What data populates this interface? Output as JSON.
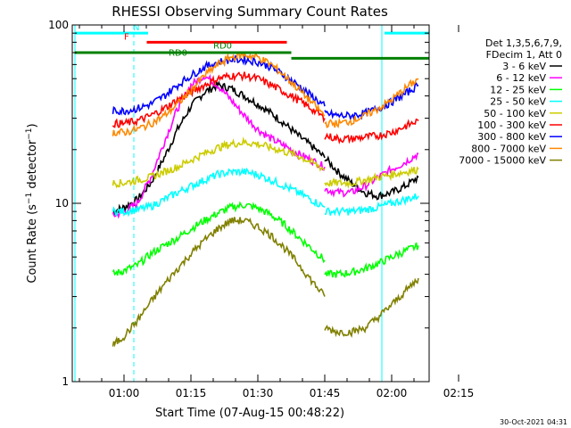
{
  "chart_data": {
    "type": "line",
    "title": "RHESSI Observing Summary Count Rates",
    "xlabel": "Start Time (07-Aug-15 00:48:22)",
    "ylabel": "Count Rate (s⁻¹ detector⁻¹)",
    "ylabel_parts": [
      "Count Rate (s",
      "−1",
      " detector",
      "−1",
      ")"
    ],
    "ylim": [
      1,
      100
    ],
    "yscale": "log",
    "y_ticks": [
      1,
      10,
      100
    ],
    "y_tick_labels": [
      "1",
      "10",
      "100"
    ],
    "xlim_min": [
      48.4,
      128.4
    ],
    "x_ticks_min": [
      60,
      75,
      90,
      105,
      120,
      135
    ],
    "x_tick_labels": [
      "01:00",
      "01:15",
      "01:30",
      "01:45",
      "02:00",
      "02:15"
    ],
    "timestamp": "30-Oct-2021 04:31",
    "legend": {
      "placement": "right",
      "header": [
        "Det 1,3,5,6,7,9,",
        "FDecim 1, Att 0"
      ],
      "entries": [
        {
          "label": "3 - 6 keV",
          "color": "#000000"
        },
        {
          "label": "6 - 12 keV",
          "color": "#ff00ff"
        },
        {
          "label": "12 - 25 keV",
          "color": "#00ff00"
        },
        {
          "label": "25 - 50 keV",
          "color": "#00ffff"
        },
        {
          "label": "50 - 100 keV",
          "color": "#cccc00"
        },
        {
          "label": "100 - 300 keV",
          "color": "#ff0000"
        },
        {
          "label": "300 - 800 keV",
          "color": "#0000ff"
        },
        {
          "label": "800 - 7000 keV",
          "color": "#ff8800"
        },
        {
          "label": "7000 - 15000 keV",
          "color": "#808000"
        }
      ]
    },
    "annotations": [
      {
        "text": "N",
        "color": "#00ffff",
        "x_min": 62,
        "y": 90
      },
      {
        "text": "F",
        "color": "#ff0000",
        "x_min": 60,
        "y": 80
      },
      {
        "text": "RD0",
        "color": "#008000",
        "x_min": 80,
        "y": 71
      },
      {
        "text": "RD0",
        "color": "#008000",
        "x_min": 70,
        "y": 65
      }
    ],
    "flag_bars": [
      {
        "name": "night",
        "color": "#00ffff",
        "y": 90,
        "segments": [
          [
            48.9,
            65.4
          ],
          [
            118.4,
            128.4
          ]
        ]
      },
      {
        "name": "flare",
        "color": "#ff0000",
        "y": 80,
        "segments": [
          [
            65.1,
            96.5
          ]
        ]
      },
      {
        "name": "rd0",
        "color": "#008000",
        "y": 70,
        "segments": [
          [
            48.9,
            97.5
          ]
        ]
      },
      {
        "name": "rd0",
        "color": "#008000",
        "y": 65,
        "segments": [
          [
            97.5,
            128.4
          ]
        ]
      }
    ],
    "day_boundaries": [
      {
        "style": "solid",
        "x_min": 49.0
      },
      {
        "style": "dashed",
        "x_min": 62.2
      },
      {
        "style": "solid",
        "x_min": 117.8
      },
      {
        "style": "dashed",
        "x_min": 131.2
      }
    ],
    "series": [
      {
        "name": "3 - 6 keV",
        "color": "#000000",
        "segments": [
          {
            "x": [
              57.5,
              60,
              63,
              66,
              69,
              72,
              75,
              78,
              81,
              84,
              87,
              90,
              93,
              96,
              99,
              102,
              105
            ],
            "y": [
              9,
              9.5,
              10.5,
              13,
              18,
              26,
              35,
              42,
              46,
              44,
              40,
              36,
              32,
              28,
              24,
              21,
              18
            ]
          },
          {
            "x": [
              105,
              108,
              111,
              114,
              117,
              120,
              123,
              126
            ],
            "y": [
              18,
              15,
              13,
              11.5,
              11,
              11.5,
              12.5,
              14
            ]
          }
        ]
      },
      {
        "name": "6 - 12 keV",
        "color": "#ff00ff",
        "segments": [
          {
            "x": [
              57.5,
              60,
              63,
              66,
              69,
              72,
              75,
              78,
              81,
              84,
              87,
              90,
              93,
              96,
              99,
              102,
              105
            ],
            "y": [
              8.5,
              9,
              10,
              14,
              22,
              34,
              46,
              52,
              46,
              38,
              31,
              26,
              23,
              21,
              19,
              17.5,
              16
            ]
          },
          {
            "x": [
              105,
              108,
              111,
              114,
              117,
              120,
              123,
              126
            ],
            "y": [
              12,
              11.5,
              11.5,
              12.5,
              14,
              15.5,
              17,
              19
            ]
          }
        ]
      },
      {
        "name": "12 - 25 keV",
        "color": "#00ff00",
        "segments": [
          {
            "x": [
              57.5,
              60,
              63,
              66,
              69,
              72,
              75,
              78,
              81,
              84,
              87,
              90,
              93,
              96,
              99,
              102,
              105
            ],
            "y": [
              4,
              4.2,
              4.5,
              5.2,
              5.8,
              6.4,
              7.2,
              8,
              8.8,
              9.5,
              9.8,
              9.4,
              8.6,
              7.6,
              6.5,
              5.6,
              4.8
            ]
          },
          {
            "x": [
              105,
              108,
              111,
              114,
              117,
              120,
              123,
              126
            ],
            "y": [
              4,
              4,
              4.1,
              4.3,
              4.6,
              5,
              5.4,
              5.8
            ]
          }
        ]
      },
      {
        "name": "25 - 50 keV",
        "color": "#00ffff",
        "segments": [
          {
            "x": [
              57.5,
              60,
              63,
              66,
              69,
              72,
              75,
              78,
              81,
              84,
              87,
              90,
              93,
              96,
              99,
              102,
              105
            ],
            "y": [
              9,
              9,
              9.2,
              9.6,
              10.5,
              11.5,
              12.5,
              13.5,
              14.5,
              15,
              15,
              14.5,
              13.5,
              12.5,
              11.5,
              10.5,
              9.5
            ]
          },
          {
            "x": [
              105,
              108,
              111,
              114,
              117,
              120,
              123,
              126
            ],
            "y": [
              9,
              9,
              9,
              9.2,
              9.5,
              10,
              10.5,
              11
            ]
          }
        ]
      },
      {
        "name": "50 - 100 keV",
        "color": "#cccc00",
        "segments": [
          {
            "x": [
              57.5,
              60,
              63,
              66,
              69,
              72,
              75,
              78,
              81,
              84,
              87,
              90,
              93,
              96,
              99,
              102,
              105
            ],
            "y": [
              13,
              13,
              13.5,
              14,
              15,
              16,
              17.5,
              19,
              20.5,
              21.5,
              22,
              21.5,
              20.5,
              19.5,
              18.5,
              17,
              15.5
            ]
          },
          {
            "x": [
              105,
              108,
              111,
              114,
              117,
              120,
              123,
              126
            ],
            "y": [
              13,
              13,
              13,
              13.5,
              14,
              14.5,
              15,
              15.5
            ]
          }
        ]
      },
      {
        "name": "100 - 300 keV",
        "color": "#ff0000",
        "segments": [
          {
            "x": [
              57.5,
              60,
              63,
              66,
              69,
              72,
              75,
              78,
              81,
              84,
              87,
              90,
              93,
              96,
              99,
              102,
              105
            ],
            "y": [
              28,
              28,
              29,
              31,
              34,
              38,
              42,
              46,
              50,
              52,
              52,
              50,
              46,
              42,
              38,
              34,
              30
            ]
          },
          {
            "x": [
              105,
              108,
              111,
              114,
              117,
              120,
              123,
              126
            ],
            "y": [
              24,
              23,
              23,
              23.5,
              24,
              25,
              27,
              29
            ]
          }
        ]
      },
      {
        "name": "300 - 800 keV",
        "color": "#0000ff",
        "segments": [
          {
            "x": [
              57.5,
              60,
              63,
              66,
              69,
              72,
              75,
              78,
              81,
              84,
              87,
              90,
              93,
              96,
              99,
              102,
              105
            ],
            "y": [
              33,
              33,
              34,
              36,
              40,
              46,
              52,
              58,
              62,
              64,
              64,
              62,
              58,
              52,
              46,
              40,
              35
            ]
          },
          {
            "x": [
              105,
              108,
              111,
              114,
              117,
              120,
              123,
              126
            ],
            "y": [
              32,
              31,
              31,
              32,
              34,
              37,
              41,
              46
            ]
          }
        ]
      },
      {
        "name": "800 - 7000 keV",
        "color": "#ff8800",
        "segments": [
          {
            "x": [
              57.5,
              60,
              63,
              66,
              69,
              72,
              75,
              78,
              81,
              84,
              87,
              90,
              93,
              96,
              99,
              102,
              105
            ],
            "y": [
              25,
              25,
              26,
              28,
              31,
              36,
              43,
              52,
              60,
              66,
              68,
              66,
              60,
              52,
              44,
              37,
              31
            ]
          },
          {
            "x": [
              105,
              108,
              111,
              114,
              117,
              120,
              123,
              126
            ],
            "y": [
              28,
              28,
              29,
              31,
              34,
              38,
              44,
              50
            ]
          }
        ]
      },
      {
        "name": "7000 - 15000 keV",
        "color": "#808000",
        "segments": [
          {
            "x": [
              57.5,
              60,
              63,
              66,
              69,
              72,
              75,
              78,
              81,
              84,
              87,
              90,
              93,
              96,
              99,
              102,
              105
            ],
            "y": [
              1.6,
              1.8,
              2.2,
              2.8,
              3.5,
              4.3,
              5.2,
              6.2,
              7.2,
              8,
              8,
              7.4,
              6.6,
              5.6,
              4.6,
              3.7,
              3
            ]
          },
          {
            "x": [
              105,
              108,
              111,
              114,
              117,
              120,
              123,
              126
            ],
            "y": [
              2,
              1.9,
              1.9,
              2,
              2.3,
              2.7,
              3.2,
              3.8
            ]
          }
        ]
      }
    ]
  }
}
